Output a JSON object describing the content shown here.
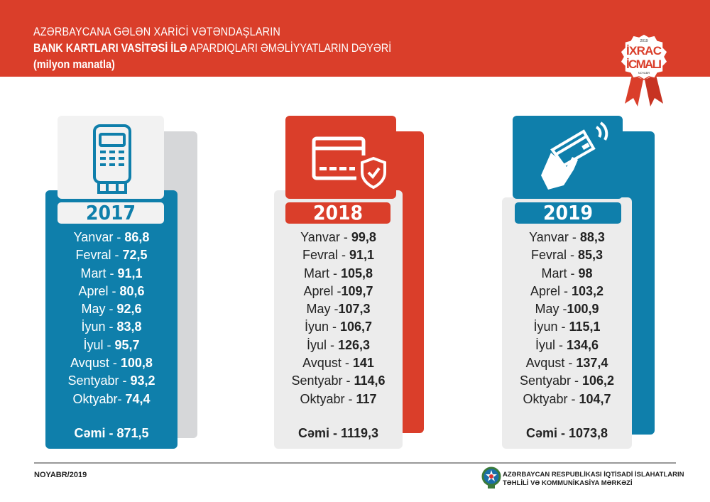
{
  "header": {
    "line1": "AZƏRBAYCANA GƏLƏN XARİCİ VƏTƏNDAŞLARIN",
    "line2_bold": "BANK KARTLARI VASİTƏSİ İLƏ",
    "line2_rest": " APARDIQLARI ƏMƏLİYYATLARIN DƏYƏRİ",
    "line3": "(milyon manatla)"
  },
  "badge": {
    "year": "2019",
    "line1": "İXRAC",
    "line2": "İCMALI",
    "month": "NOYABR"
  },
  "colors": {
    "red": "#da3e2a",
    "blue": "#0f7fab",
    "gray": "#ececec"
  },
  "cards": [
    {
      "year": "2017",
      "icon": "card-terminal-icon",
      "rows": [
        [
          "Yanvar - ",
          "86,8"
        ],
        [
          "Fevral - ",
          "72,5"
        ],
        [
          "Mart - ",
          "91,1"
        ],
        [
          "Aprel - ",
          "80,6"
        ],
        [
          "May - ",
          "92,6"
        ],
        [
          "İyun - ",
          "83,8"
        ],
        [
          "İyul - ",
          "95,7"
        ],
        [
          "Avqust - ",
          "100,8"
        ],
        [
          "Sentyabr - ",
          "93,2"
        ],
        [
          "Oktyabr- ",
          "74,4"
        ]
      ],
      "total": "Cəmi - 871,5"
    },
    {
      "year": "2018",
      "icon": "secure-card-icon",
      "rows": [
        [
          "Yanvar - ",
          "99,8"
        ],
        [
          "Fevral - ",
          "91,1"
        ],
        [
          "Mart - ",
          "105,8"
        ],
        [
          "Aprel -",
          "109,7"
        ],
        [
          "May -",
          "107,3"
        ],
        [
          "İyun - ",
          "106,7"
        ],
        [
          "İyul - ",
          "126,3"
        ],
        [
          "Avqust - ",
          "141"
        ],
        [
          "Sentyabr - ",
          "114,6"
        ],
        [
          "Oktyabr - ",
          "117"
        ]
      ],
      "total": "Cəmi - 1119,3"
    },
    {
      "year": "2019",
      "icon": "contactless-card-icon",
      "rows": [
        [
          "Yanvar - ",
          "88,3"
        ],
        [
          "Fevral - ",
          "85,3"
        ],
        [
          "Mart - ",
          "98"
        ],
        [
          "Aprel - ",
          "103,2"
        ],
        [
          "May -",
          "100,9"
        ],
        [
          "İyun - ",
          "115,1"
        ],
        [
          "İyul - ",
          "134,6"
        ],
        [
          "Avqust - ",
          "137,4"
        ],
        [
          "Sentyabr - ",
          "106,2"
        ],
        [
          "Oktyabr - ",
          "104,7"
        ]
      ],
      "total": "Cəmi - 1073,8"
    }
  ],
  "footer": {
    "date": "NOYABR/2019",
    "org_line1": "AZƏRBAYCAN RESPUBLİKASI İQTİSADİ İSLAHATLARIN",
    "org_line2": "TƏHLİLİ VƏ KOMMUNİKASİYA MƏRKƏZİ"
  }
}
